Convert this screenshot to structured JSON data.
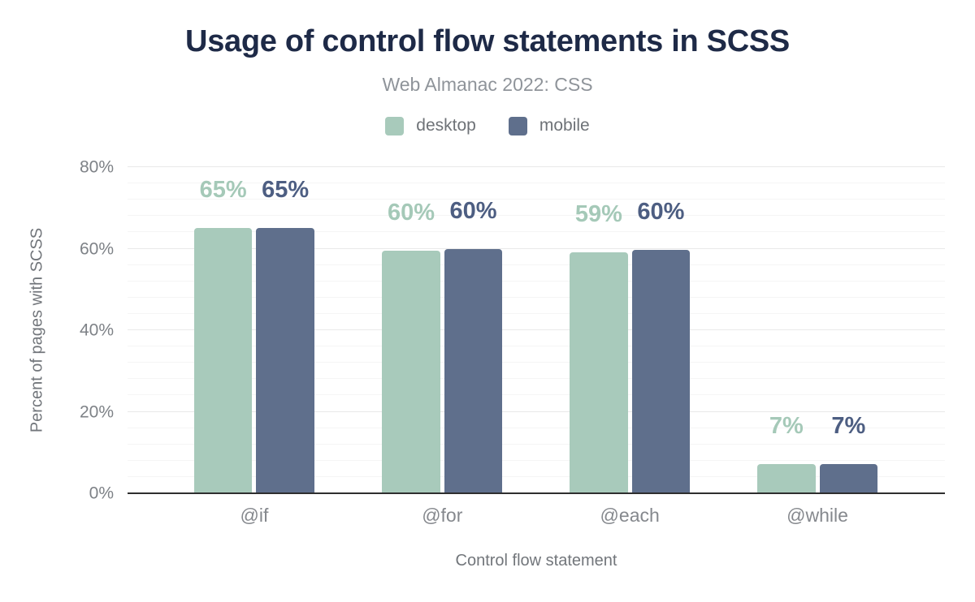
{
  "theme": {
    "title_color": "#1e2a47",
    "subtitle_color": "#8f949a",
    "muted_text_color": "#72767b",
    "tick_text_color": "#7e8287",
    "axis_line_color": "#2e2e2e",
    "gridline_minor_color": "#f5f5f5",
    "gridline_major_color": "#e9e9e9",
    "background_color": "#ffffff",
    "desktop_color": "#a8cabb",
    "mobile_color": "#5f6f8c"
  },
  "chart_data": {
    "type": "bar",
    "title": "Usage of control flow statements in SCSS",
    "subtitle": "Web Almanac 2022: CSS",
    "categories": [
      "@if",
      "@for",
      "@each",
      "@while"
    ],
    "series": [
      {
        "name": "desktop",
        "color": "#a8cabb",
        "label_color": "#a5c9b8",
        "values": [
          65,
          60,
          59,
          7
        ],
        "heights_pct": [
          65.0,
          59.6,
          59.2,
          7.1
        ],
        "labels": [
          "65%",
          "60%",
          "59%",
          "7%"
        ]
      },
      {
        "name": "mobile",
        "color": "#5f6f8c",
        "label_color": "#4d5e82",
        "values": [
          65,
          60,
          60,
          7
        ],
        "heights_pct": [
          65.0,
          60.0,
          59.7,
          7.1
        ],
        "labels": [
          "65%",
          "60%",
          "60%",
          "7%"
        ]
      }
    ],
    "xlabel": "Control flow statement",
    "ylabel": "Percent of pages with SCSS",
    "ylim": [
      0,
      80
    ],
    "yticks": [
      {
        "label": "0%",
        "value": 0
      },
      {
        "label": "20%",
        "value": 20
      },
      {
        "label": "40%",
        "value": 40
      },
      {
        "label": "60%",
        "value": 60
      },
      {
        "label": "80%",
        "value": 80
      }
    ],
    "grid": {
      "minor_step_pct": 4,
      "major_step_pct": 20
    },
    "legend_position": "top"
  }
}
